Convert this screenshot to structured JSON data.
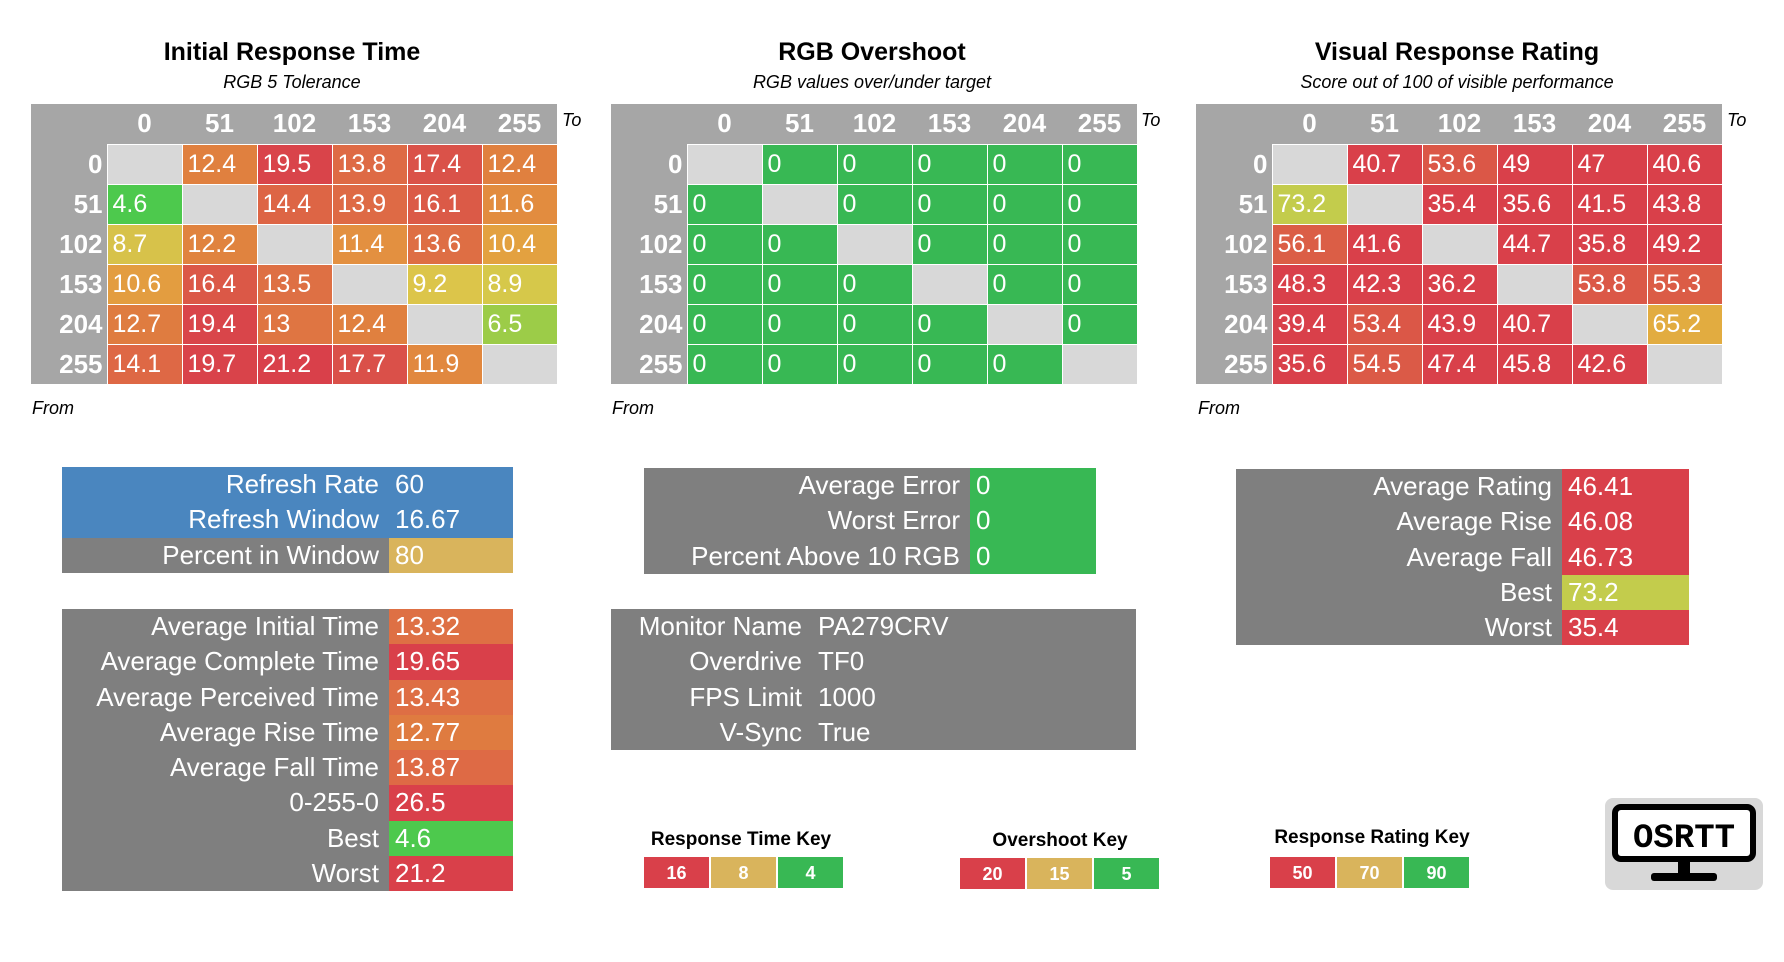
{
  "panels": {
    "initial_response": {
      "title": "Initial Response Time",
      "subtitle": "RGB 5 Tolerance",
      "to_label": "To",
      "from_label": "From",
      "columns": [
        "0",
        "51",
        "102",
        "153",
        "204",
        "255"
      ],
      "rows": [
        {
          "label": "0",
          "cells": [
            {
              "v": "",
              "c": "#d8d8d8"
            },
            {
              "v": "12.4",
              "c": "#e0803f"
            },
            {
              "v": "19.5",
              "c": "#d9444a"
            },
            {
              "v": "13.8",
              "c": "#de6a45"
            },
            {
              "v": "17.4",
              "c": "#da5249"
            },
            {
              "v": "12.4",
              "c": "#e0803f"
            }
          ]
        },
        {
          "label": "51",
          "cells": [
            {
              "v": "4.6",
              "c": "#4dc94d"
            },
            {
              "v": "",
              "c": "#d8d8d8"
            },
            {
              "v": "14.4",
              "c": "#dd6545"
            },
            {
              "v": "13.9",
              "c": "#de6a45"
            },
            {
              "v": "16.1",
              "c": "#db5a47"
            },
            {
              "v": "11.6",
              "c": "#e28c3f"
            }
          ]
        },
        {
          "label": "102",
          "cells": [
            {
              "v": "8.7",
              "c": "#d7c24a"
            },
            {
              "v": "12.2",
              "c": "#e0833f"
            },
            {
              "v": "",
              "c": "#d8d8d8"
            },
            {
              "v": "11.4",
              "c": "#e39040"
            },
            {
              "v": "13.6",
              "c": "#de6e44"
            },
            {
              "v": "10.4",
              "c": "#e3a140"
            }
          ]
        },
        {
          "label": "153",
          "cells": [
            {
              "v": "10.6",
              "c": "#e39d40"
            },
            {
              "v": "16.4",
              "c": "#db5847"
            },
            {
              "v": "13.5",
              "c": "#de7044"
            },
            {
              "v": "",
              "c": "#d8d8d8"
            },
            {
              "v": "9.2",
              "c": "#dcc54a"
            },
            {
              "v": "8.9",
              "c": "#d6c84a"
            }
          ]
        },
        {
          "label": "204",
          "cells": [
            {
              "v": "12.7",
              "c": "#df7c40"
            },
            {
              "v": "19.4",
              "c": "#d9454a"
            },
            {
              "v": "13",
              "c": "#df7542"
            },
            {
              "v": "12.4",
              "c": "#e0803f"
            },
            {
              "v": "",
              "c": "#d8d8d8"
            },
            {
              "v": "6.5",
              "c": "#9ccc48"
            }
          ]
        },
        {
          "label": "255",
          "cells": [
            {
              "v": "14.1",
              "c": "#de6845"
            },
            {
              "v": "19.7",
              "c": "#d9434a"
            },
            {
              "v": "21.2",
              "c": "#d9404a"
            },
            {
              "v": "17.7",
              "c": "#da5049"
            },
            {
              "v": "11.9",
              "c": "#e1883f"
            },
            {
              "v": "",
              "c": "#d8d8d8"
            }
          ]
        }
      ]
    },
    "overshoot": {
      "title": "RGB Overshoot",
      "subtitle": "RGB values over/under target",
      "to_label": "To",
      "from_label": "From",
      "columns": [
        "0",
        "51",
        "102",
        "153",
        "204",
        "255"
      ],
      "rows": [
        {
          "label": "0",
          "cells": [
            {
              "v": "",
              "c": "#d8d8d8"
            },
            {
              "v": "0",
              "c": "#38b854"
            },
            {
              "v": "0",
              "c": "#38b854"
            },
            {
              "v": "0",
              "c": "#38b854"
            },
            {
              "v": "0",
              "c": "#38b854"
            },
            {
              "v": "0",
              "c": "#38b854"
            }
          ]
        },
        {
          "label": "51",
          "cells": [
            {
              "v": "0",
              "c": "#38b854"
            },
            {
              "v": "",
              "c": "#d8d8d8"
            },
            {
              "v": "0",
              "c": "#38b854"
            },
            {
              "v": "0",
              "c": "#38b854"
            },
            {
              "v": "0",
              "c": "#38b854"
            },
            {
              "v": "0",
              "c": "#38b854"
            }
          ]
        },
        {
          "label": "102",
          "cells": [
            {
              "v": "0",
              "c": "#38b854"
            },
            {
              "v": "0",
              "c": "#38b854"
            },
            {
              "v": "",
              "c": "#d8d8d8"
            },
            {
              "v": "0",
              "c": "#38b854"
            },
            {
              "v": "0",
              "c": "#38b854"
            },
            {
              "v": "0",
              "c": "#38b854"
            }
          ]
        },
        {
          "label": "153",
          "cells": [
            {
              "v": "0",
              "c": "#38b854"
            },
            {
              "v": "0",
              "c": "#38b854"
            },
            {
              "v": "0",
              "c": "#38b854"
            },
            {
              "v": "",
              "c": "#d8d8d8"
            },
            {
              "v": "0",
              "c": "#38b854"
            },
            {
              "v": "0",
              "c": "#38b854"
            }
          ]
        },
        {
          "label": "204",
          "cells": [
            {
              "v": "0",
              "c": "#38b854"
            },
            {
              "v": "0",
              "c": "#38b854"
            },
            {
              "v": "0",
              "c": "#38b854"
            },
            {
              "v": "0",
              "c": "#38b854"
            },
            {
              "v": "",
              "c": "#d8d8d8"
            },
            {
              "v": "0",
              "c": "#38b854"
            }
          ]
        },
        {
          "label": "255",
          "cells": [
            {
              "v": "0",
              "c": "#38b854"
            },
            {
              "v": "0",
              "c": "#38b854"
            },
            {
              "v": "0",
              "c": "#38b854"
            },
            {
              "v": "0",
              "c": "#38b854"
            },
            {
              "v": "0",
              "c": "#38b854"
            },
            {
              "v": "",
              "c": "#d8d8d8"
            }
          ]
        }
      ]
    },
    "visual_rating": {
      "title": "Visual Response Rating",
      "subtitle": "Score out of 100 of visible performance",
      "to_label": "To",
      "from_label": "From",
      "columns": [
        "0",
        "51",
        "102",
        "153",
        "204",
        "255"
      ],
      "rows": [
        {
          "label": "0",
          "cells": [
            {
              "v": "",
              "c": "#d8d8d8"
            },
            {
              "v": "40.7",
              "c": "#d9404a"
            },
            {
              "v": "53.6",
              "c": "#db5747"
            },
            {
              "v": "49",
              "c": "#d9404a"
            },
            {
              "v": "47",
              "c": "#d9404a"
            },
            {
              "v": "40.6",
              "c": "#d9404a"
            }
          ]
        },
        {
          "label": "51",
          "cells": [
            {
              "v": "73.2",
              "c": "#c3cc4c"
            },
            {
              "v": "",
              "c": "#d8d8d8"
            },
            {
              "v": "35.4",
              "c": "#d9404a"
            },
            {
              "v": "35.6",
              "c": "#d9404a"
            },
            {
              "v": "41.5",
              "c": "#d9404a"
            },
            {
              "v": "43.8",
              "c": "#d9404a"
            }
          ]
        },
        {
          "label": "102",
          "cells": [
            {
              "v": "56.1",
              "c": "#db5e46"
            },
            {
              "v": "41.6",
              "c": "#d9404a"
            },
            {
              "v": "",
              "c": "#d8d8d8"
            },
            {
              "v": "44.7",
              "c": "#d9404a"
            },
            {
              "v": "35.8",
              "c": "#d9404a"
            },
            {
              "v": "49.2",
              "c": "#d9404a"
            }
          ]
        },
        {
          "label": "153",
          "cells": [
            {
              "v": "48.3",
              "c": "#d9404a"
            },
            {
              "v": "42.3",
              "c": "#d9404a"
            },
            {
              "v": "36.2",
              "c": "#d9404a"
            },
            {
              "v": "",
              "c": "#d8d8d8"
            },
            {
              "v": "53.8",
              "c": "#db5847"
            },
            {
              "v": "55.3",
              "c": "#db5c46"
            }
          ]
        },
        {
          "label": "204",
          "cells": [
            {
              "v": "39.4",
              "c": "#d9404a"
            },
            {
              "v": "53.4",
              "c": "#db5747"
            },
            {
              "v": "43.9",
              "c": "#d9404a"
            },
            {
              "v": "40.7",
              "c": "#d9404a"
            },
            {
              "v": "",
              "c": "#d8d8d8"
            },
            {
              "v": "65.2",
              "c": "#e2ac40"
            }
          ]
        },
        {
          "label": "255",
          "cells": [
            {
              "v": "35.6",
              "c": "#d9404a"
            },
            {
              "v": "54.5",
              "c": "#db5a47"
            },
            {
              "v": "47.4",
              "c": "#d9404a"
            },
            {
              "v": "45.8",
              "c": "#d9404a"
            },
            {
              "v": "42.6",
              "c": "#d9404a"
            },
            {
              "v": "",
              "c": "#d8d8d8"
            }
          ]
        }
      ]
    }
  },
  "refresh": [
    {
      "label": "Refresh Rate",
      "value": "60",
      "c": "#4a86bf",
      "lc": "#4a86bf"
    },
    {
      "label": "Refresh Window",
      "value": "16.67",
      "c": "#4a86bf",
      "lc": "#4a86bf"
    },
    {
      "label": "Percent in Window",
      "value": "80",
      "c": "#d9b45c",
      "lc": "#7f7f7f"
    }
  ],
  "averages": [
    {
      "label": "Average Initial Time",
      "value": "13.32",
      "c": "#de7044"
    },
    {
      "label": "Average Complete Time",
      "value": "19.65",
      "c": "#d9404a"
    },
    {
      "label": "Average Perceived Time",
      "value": "13.43",
      "c": "#de6e44"
    },
    {
      "label": "Average Rise Time",
      "value": "12.77",
      "c": "#df7b40"
    },
    {
      "label": "Average Fall Time",
      "value": "13.87",
      "c": "#de6a45"
    },
    {
      "label": "0-255-0",
      "value": "26.5",
      "c": "#d9404a"
    },
    {
      "label": "Best",
      "value": "4.6",
      "c": "#4dc94d"
    },
    {
      "label": "Worst",
      "value": "21.2",
      "c": "#d9404a"
    }
  ],
  "errors": [
    {
      "label": "Average Error",
      "value": "0",
      "c": "#38b854"
    },
    {
      "label": "Worst Error",
      "value": "0",
      "c": "#38b854"
    },
    {
      "label": "Percent Above 10 RGB",
      "value": "0",
      "c": "#38b854"
    }
  ],
  "monitor": [
    {
      "label": "Monitor Name",
      "value": "PA279CRV"
    },
    {
      "label": "Overdrive",
      "value": "TF0"
    },
    {
      "label": "FPS Limit",
      "value": "1000"
    },
    {
      "label": "V-Sync",
      "value": "True"
    }
  ],
  "ratings": [
    {
      "label": "Average Rating",
      "value": "46.41",
      "c": "#d9404a"
    },
    {
      "label": "Average Rise",
      "value": "46.08",
      "c": "#d9404a"
    },
    {
      "label": "Average Fall",
      "value": "46.73",
      "c": "#d9404a"
    },
    {
      "label": "Best",
      "value": "73.2",
      "c": "#c3cc4c"
    },
    {
      "label": "Worst",
      "value": "35.4",
      "c": "#d9404a"
    }
  ],
  "keys": {
    "response": {
      "title": "Response Time Key",
      "items": [
        {
          "v": "16",
          "c": "#d9404a"
        },
        {
          "v": "8",
          "c": "#d9b45c"
        },
        {
          "v": "4",
          "c": "#38b854"
        }
      ]
    },
    "overshoot": {
      "title": "Overshoot Key",
      "items": [
        {
          "v": "20",
          "c": "#d9404a"
        },
        {
          "v": "15",
          "c": "#d9b45c"
        },
        {
          "v": "5",
          "c": "#38b854"
        }
      ]
    },
    "rating": {
      "title": "Response Rating Key",
      "items": [
        {
          "v": "50",
          "c": "#d9404a"
        },
        {
          "v": "70",
          "c": "#d9b45c"
        },
        {
          "v": "90",
          "c": "#38b854"
        }
      ]
    }
  },
  "logo": {
    "text": "OSRTT",
    "icon": "monitor-icon"
  }
}
